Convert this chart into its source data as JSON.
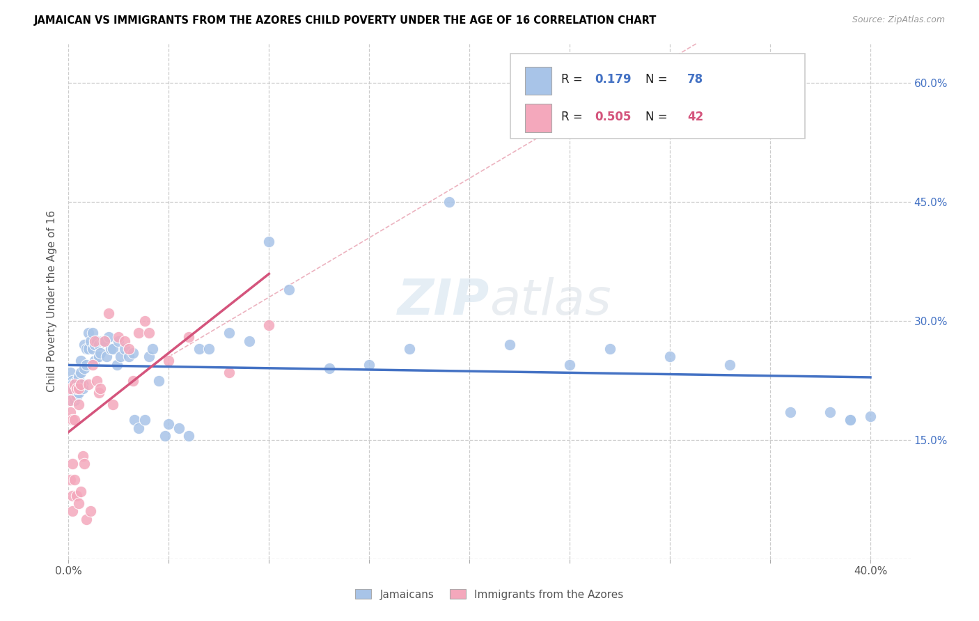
{
  "title": "JAMAICAN VS IMMIGRANTS FROM THE AZORES CHILD POVERTY UNDER THE AGE OF 16 CORRELATION CHART",
  "source": "Source: ZipAtlas.com",
  "ylabel": "Child Poverty Under the Age of 16",
  "xlim": [
    0.0,
    0.42
  ],
  "ylim": [
    0.0,
    0.65
  ],
  "x_tick_positions": [
    0.0,
    0.05,
    0.1,
    0.15,
    0.2,
    0.25,
    0.3,
    0.35,
    0.4
  ],
  "x_tick_labels": [
    "0.0%",
    "",
    "",
    "",
    "",
    "",
    "",
    "",
    "40.0%"
  ],
  "y_tick_positions": [
    0.0,
    0.15,
    0.3,
    0.45,
    0.6
  ],
  "y_tick_labels_right": [
    "",
    "15.0%",
    "30.0%",
    "45.0%",
    "60.0%"
  ],
  "legend_label1": "Jamaicans",
  "legend_label2": "Immigrants from the Azores",
  "blue_color": "#a8c4e8",
  "pink_color": "#f4a8bc",
  "blue_line_color": "#4472C4",
  "pink_line_color": "#d4547c",
  "diag_line_color": "#e8a0b0",
  "blue_R": 0.179,
  "blue_N": 78,
  "pink_R": 0.505,
  "pink_N": 42,
  "jamaican_x": [
    0.001,
    0.001,
    0.001,
    0.001,
    0.002,
    0.002,
    0.002,
    0.002,
    0.003,
    0.003,
    0.003,
    0.004,
    0.004,
    0.004,
    0.005,
    0.005,
    0.005,
    0.006,
    0.006,
    0.007,
    0.007,
    0.008,
    0.008,
    0.009,
    0.009,
    0.01,
    0.01,
    0.011,
    0.012,
    0.012,
    0.013,
    0.013,
    0.014,
    0.015,
    0.015,
    0.016,
    0.017,
    0.018,
    0.019,
    0.02,
    0.021,
    0.022,
    0.024,
    0.025,
    0.026,
    0.028,
    0.03,
    0.032,
    0.033,
    0.035,
    0.038,
    0.04,
    0.042,
    0.045,
    0.048,
    0.05,
    0.055,
    0.06,
    0.065,
    0.07,
    0.08,
    0.09,
    0.1,
    0.11,
    0.13,
    0.15,
    0.17,
    0.19,
    0.22,
    0.25,
    0.27,
    0.3,
    0.33,
    0.36,
    0.38,
    0.39,
    0.39,
    0.4
  ],
  "jamaican_y": [
    0.215,
    0.225,
    0.235,
    0.2,
    0.225,
    0.22,
    0.215,
    0.205,
    0.22,
    0.21,
    0.2,
    0.225,
    0.215,
    0.205,
    0.23,
    0.22,
    0.21,
    0.25,
    0.235,
    0.22,
    0.215,
    0.27,
    0.24,
    0.265,
    0.245,
    0.285,
    0.265,
    0.275,
    0.285,
    0.265,
    0.27,
    0.25,
    0.275,
    0.27,
    0.255,
    0.26,
    0.275,
    0.275,
    0.255,
    0.28,
    0.265,
    0.265,
    0.245,
    0.275,
    0.255,
    0.265,
    0.255,
    0.26,
    0.175,
    0.165,
    0.175,
    0.255,
    0.265,
    0.225,
    0.155,
    0.17,
    0.165,
    0.155,
    0.265,
    0.265,
    0.285,
    0.275,
    0.4,
    0.34,
    0.24,
    0.245,
    0.265,
    0.45,
    0.27,
    0.245,
    0.265,
    0.255,
    0.245,
    0.185,
    0.185,
    0.175,
    0.175,
    0.18
  ],
  "azores_x": [
    0.001,
    0.001,
    0.001,
    0.001,
    0.002,
    0.002,
    0.002,
    0.002,
    0.003,
    0.003,
    0.003,
    0.004,
    0.004,
    0.005,
    0.005,
    0.005,
    0.006,
    0.006,
    0.007,
    0.008,
    0.009,
    0.01,
    0.011,
    0.012,
    0.013,
    0.014,
    0.015,
    0.016,
    0.018,
    0.02,
    0.022,
    0.025,
    0.028,
    0.03,
    0.032,
    0.035,
    0.038,
    0.04,
    0.05,
    0.06,
    0.08,
    0.1
  ],
  "azores_y": [
    0.215,
    0.2,
    0.185,
    0.1,
    0.175,
    0.12,
    0.08,
    0.06,
    0.22,
    0.175,
    0.1,
    0.215,
    0.08,
    0.215,
    0.195,
    0.07,
    0.22,
    0.085,
    0.13,
    0.12,
    0.05,
    0.22,
    0.06,
    0.245,
    0.275,
    0.225,
    0.21,
    0.215,
    0.275,
    0.31,
    0.195,
    0.28,
    0.275,
    0.265,
    0.225,
    0.285,
    0.3,
    0.285,
    0.25,
    0.28,
    0.235,
    0.295
  ]
}
